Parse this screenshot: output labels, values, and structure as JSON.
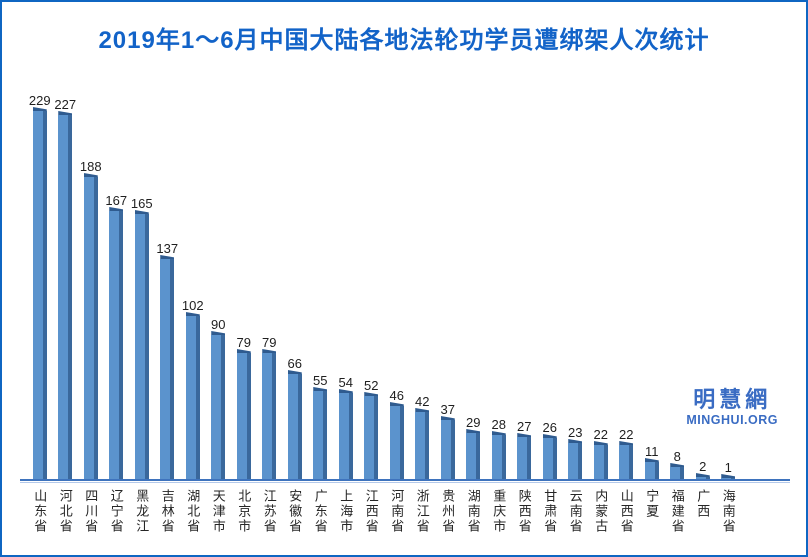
{
  "title": "2019年1～6月中国大陆各地法轮功学员遭绑架人次统计",
  "watermark": {
    "cn": "明慧網",
    "en": "MINGHUI.ORG"
  },
  "colors": {
    "border": "#0f66c2",
    "title": "#1263c8",
    "bar_front": "#5b93cd",
    "bar_side": "#3a689c",
    "bar_cap": "#2f5b8f",
    "axis_line": "#3e73bd",
    "axis_shadow": "#b4c9ea",
    "value_label": "#1f1f1f",
    "category_label": "#262626",
    "watermark": "#3a6cc3"
  },
  "chart_data": {
    "type": "bar",
    "title": "2019年1～6月中国大陆各地法轮功学员遭绑架人次统计",
    "xlabel": "",
    "ylabel": "",
    "ylim": [
      0,
      240
    ],
    "grid": false,
    "legend_position": "none",
    "bar_style": "3d-column",
    "categories": [
      "山东省",
      "河北省",
      "四川省",
      "辽宁省",
      "黑龙江",
      "吉林省",
      "湖北省",
      "天津市",
      "北京市",
      "江苏省",
      "安徽省",
      "广东省",
      "上海市",
      "江西省",
      "河南省",
      "浙江省",
      "贵州省",
      "湖南省",
      "重庆市",
      "陕西省",
      "甘肃省",
      "云南省",
      "内蒙古",
      "山西省",
      "宁夏",
      "福建省",
      "广西",
      "海南省"
    ],
    "values": [
      229,
      227,
      188,
      167,
      165,
      137,
      102,
      90,
      79,
      79,
      66,
      55,
      54,
      52,
      46,
      42,
      37,
      29,
      28,
      27,
      26,
      23,
      22,
      22,
      11,
      8,
      2,
      1
    ]
  }
}
